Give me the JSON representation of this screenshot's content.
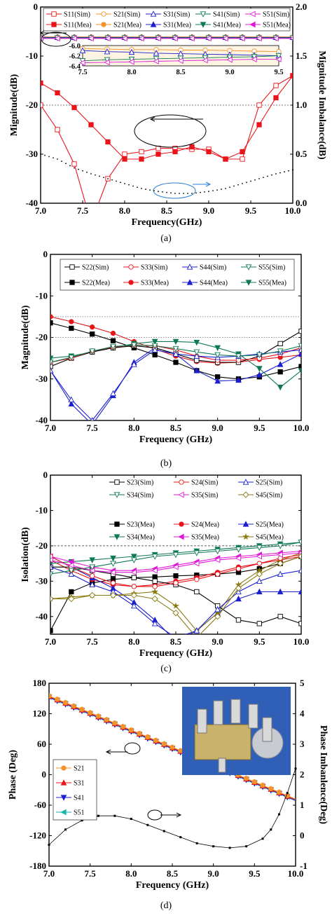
{
  "chart_data": [
    {
      "type": "line",
      "panel": "(a)",
      "xlabel": "Frequency(GHz)",
      "ylabel": "Mignitude(dB)",
      "y2label": "Mignitude Imbalance(dB)",
      "xlim": [
        7.0,
        10.0
      ],
      "ylim": [
        -40,
        0
      ],
      "y2lim": [
        0.0,
        2.0
      ],
      "xticks": [
        "7.0",
        "7.5",
        "8.0",
        "8.5",
        "9.0",
        "9.5",
        "10.0"
      ],
      "yticks": [
        "0",
        "-10",
        "-20",
        "-30",
        "-40"
      ],
      "y2ticks": [
        "0.0",
        "0.5",
        "1.0",
        "1.5",
        "2.0"
      ],
      "legend_position": "top",
      "legend": [
        "S11(Sim)",
        "S21(Sim)",
        "S31(Sim)",
        "S41(Sim)",
        "S51(Sim)",
        "S11(Mea)",
        "S21(Mea)",
        "S31(Mea)",
        "S41(Mea)",
        "S51(Mea)"
      ],
      "colors": {
        "S11": "#e8151b",
        "S21": "#f7922a",
        "S31": "#1b1fd0",
        "S41": "#0f7a52",
        "S51": "#e018d8",
        "imbalance": "#000000"
      },
      "x": [
        7.0,
        7.2,
        7.4,
        7.6,
        7.8,
        8.0,
        8.2,
        8.4,
        8.6,
        8.8,
        9.0,
        9.2,
        9.4,
        9.6,
        9.8,
        10.0
      ],
      "series": [
        {
          "name": "S11(Sim)",
          "axis": "y",
          "values": [
            -20,
            -25,
            -32,
            -44,
            -35,
            -30,
            -29.5,
            -28.8,
            -28.8,
            -29,
            -29,
            -31,
            -31,
            -20,
            -16,
            -14
          ]
        },
        {
          "name": "S11(Mea)",
          "axis": "y",
          "values": [
            -15.5,
            -17.5,
            -20.5,
            -24,
            -27.5,
            -31,
            -31,
            -30,
            -29.5,
            -28.5,
            -29.5,
            -31,
            -29.5,
            -24,
            -18.5,
            -14
          ]
        },
        {
          "name": "S21(Sim)",
          "axis": "y",
          "values": [
            -6.1,
            -6.1,
            -6.1,
            -6.1,
            -6.1,
            -6.1,
            -6.1,
            -6.1,
            -6.1,
            -6.1,
            -6.1,
            -6.1,
            -6.1,
            -6.1,
            -6.1,
            -6.1
          ]
        },
        {
          "name": "S31(Sim)",
          "axis": "y",
          "values": [
            -6.2,
            -6.2,
            -6.2,
            -6.2,
            -6.2,
            -6.2,
            -6.2,
            -6.2,
            -6.2,
            -6.2,
            -6.2,
            -6.2,
            -6.2,
            -6.2,
            -6.2,
            -6.2
          ]
        },
        {
          "name": "S41(Sim)",
          "axis": "y",
          "values": [
            -6.3,
            -6.3,
            -6.3,
            -6.3,
            -6.3,
            -6.3,
            -6.3,
            -6.3,
            -6.3,
            -6.3,
            -6.3,
            -6.3,
            -6.3,
            -6.3,
            -6.3,
            -6.3
          ]
        },
        {
          "name": "S51(Sim)",
          "axis": "y",
          "values": [
            -6.4,
            -6.4,
            -6.4,
            -6.4,
            -6.4,
            -6.4,
            -6.4,
            -6.4,
            -6.4,
            -6.4,
            -6.4,
            -6.4,
            -6.4,
            -6.4,
            -6.4,
            -6.4
          ]
        },
        {
          "name": "Imbalance",
          "axis": "y2",
          "style": "dots",
          "values": [
            0.5,
            0.45,
            0.36,
            0.3,
            0.25,
            0.2,
            0.15,
            0.12,
            0.1,
            0.1,
            0.12,
            0.15,
            0.2,
            0.25,
            0.3,
            0.34
          ]
        }
      ],
      "inset": {
        "xlim": [
          7.5,
          9.5
        ],
        "ylim": [
          -6.4,
          -6.0
        ],
        "xticks": [
          "7.5",
          "8.0",
          "8.5",
          "9.0",
          "9.5"
        ],
        "yticks": [
          "-6.0",
          "-6.2",
          "-6.4"
        ],
        "x": [
          7.5,
          7.75,
          8.0,
          8.25,
          8.5,
          8.75,
          9.0,
          9.25,
          9.5
        ],
        "series": [
          {
            "name": "S21",
            "values": [
              -6.06,
              -6.07,
              -6.08,
              -6.08,
              -6.09,
              -6.09,
              -6.1,
              -6.11,
              -6.12
            ]
          },
          {
            "name": "S31",
            "values": [
              -6.1,
              -6.12,
              -6.13,
              -6.15,
              -6.16,
              -6.17,
              -6.18,
              -6.19,
              -6.2
            ]
          },
          {
            "name": "S41",
            "values": [
              -6.3,
              -6.28,
              -6.27,
              -6.26,
              -6.25,
              -6.24,
              -6.23,
              -6.22,
              -6.2
            ]
          },
          {
            "name": "S51",
            "values": [
              -6.34,
              -6.33,
              -6.32,
              -6.31,
              -6.3,
              -6.29,
              -6.28,
              -6.27,
              -6.27
            ]
          }
        ]
      }
    },
    {
      "type": "line",
      "panel": "(b)",
      "xlabel": "Frequency (GHz)",
      "ylabel": "Magnitude(dB)",
      "xlim": [
        7.0,
        10.0
      ],
      "ylim": [
        -40,
        0
      ],
      "xticks": [
        "7.0",
        "7.5",
        "8.0",
        "8.5",
        "9.0",
        "9.5",
        "10.0"
      ],
      "yticks": [
        "0",
        "-10",
        "-20",
        "-30",
        "-40"
      ],
      "legend_position": "top",
      "legend": [
        "S22(Sim)",
        "S33(Sim)",
        "S44(Sim)",
        "S55(Sim)",
        "S22(Mea)",
        "S33(Mea)",
        "S44(Mea)",
        "S55(Mea)"
      ],
      "colors": {
        "S22": "#000000",
        "S33": "#e8151b",
        "S44": "#1b1fd0",
        "S55": "#0f7a52"
      },
      "x": [
        7.0,
        7.25,
        7.5,
        7.75,
        8.0,
        8.25,
        8.5,
        8.75,
        9.0,
        9.25,
        9.5,
        9.75,
        10.0
      ],
      "series": [
        {
          "name": "S22(Mea)",
          "values": [
            -16.5,
            -17.8,
            -19.2,
            -20.8,
            -22.5,
            -24.2,
            -26,
            -28,
            -29.5,
            -30,
            -29.5,
            -28.3,
            -27
          ]
        },
        {
          "name": "S33(Mea)",
          "values": [
            -15,
            -16.2,
            -17.5,
            -19,
            -21,
            -22.8,
            -24.5,
            -25.8,
            -26.2,
            -26,
            -25.3,
            -24.8,
            -24.2
          ]
        },
        {
          "name": "S44(Mea)",
          "values": [
            -28,
            -36,
            -41,
            -34,
            -26,
            -22.5,
            -24,
            -28,
            -30.5,
            -30.3,
            -29,
            -26.5,
            -24
          ]
        },
        {
          "name": "S55(Mea)",
          "values": [
            -25,
            -24.5,
            -23.5,
            -22.5,
            -21.5,
            -21,
            -21,
            -21.2,
            -22.5,
            -24,
            -27.5,
            -32,
            -28
          ]
        },
        {
          "name": "S22(Sim)",
          "values": [
            -27,
            -25,
            -23.5,
            -22.5,
            -22,
            -22.5,
            -24,
            -25.5,
            -26,
            -26,
            -24.5,
            -21.5,
            -18.5
          ]
        },
        {
          "name": "S33(Sim)",
          "values": [
            -26,
            -25,
            -23.3,
            -22.3,
            -21.8,
            -22,
            -23,
            -24.5,
            -25.5,
            -25.5,
            -25,
            -24,
            -22.5
          ]
        },
        {
          "name": "S44(Sim)",
          "values": [
            -28,
            -35,
            -40,
            -33.5,
            -26.5,
            -23,
            -24,
            -24.5,
            -24.8,
            -24.5,
            -24,
            -23.5,
            -23
          ]
        },
        {
          "name": "S55(Sim)",
          "values": [
            -26,
            -24.8,
            -23.3,
            -22.2,
            -21.8,
            -22,
            -22.7,
            -23.5,
            -24.2,
            -24.5,
            -24.2,
            -23.3,
            -22
          ]
        }
      ],
      "reference_lines": [
        -15,
        -20
      ]
    },
    {
      "type": "line",
      "panel": "(c)",
      "xlabel": "Frequency (GHz)",
      "ylabel": "Isolation(dB)",
      "xlim": [
        7.0,
        10.0
      ],
      "ylim": [
        -45,
        0
      ],
      "xticks": [
        "7.0",
        "7.5",
        "8.0",
        "8.5",
        "9.0",
        "9.5",
        "10.0"
      ],
      "yticks": [
        "0",
        "-10",
        "-20",
        "-30",
        "-40"
      ],
      "legend_position": "right",
      "legend": [
        "S23(Sim)",
        "S24(Sim)",
        "S25(Sim)",
        "S34(Sim)",
        "S35(Sim)",
        "S45(Sim)",
        "S23(Mea)",
        "S24(Mea)",
        "S25(Mea)",
        "S34(Mea)",
        "S35(Mea)",
        "S45(Mea)"
      ],
      "colors": {
        "S23": "#000000",
        "S24": "#e8151b",
        "S25": "#1b1fd0",
        "S34": "#0f7a52",
        "S35": "#e018d8",
        "S45": "#8a7a10"
      },
      "x": [
        7.0,
        7.25,
        7.5,
        7.75,
        8.0,
        8.25,
        8.5,
        8.75,
        9.0,
        9.25,
        9.5,
        9.75,
        10.0
      ],
      "series": [
        {
          "name": "S23(Mea)",
          "values": [
            -44,
            -33,
            -30.5,
            -29.5,
            -29,
            -28.8,
            -28.5,
            -28.3,
            -28,
            -27.5,
            -26.5,
            -25,
            -23
          ]
        },
        {
          "name": "S24(Mea)",
          "values": [
            -24,
            -27,
            -29.5,
            -31,
            -31.5,
            -31,
            -30,
            -29,
            -27.5,
            -26,
            -25,
            -24,
            -23
          ]
        },
        {
          "name": "S25(Mea)",
          "values": [
            -23,
            -26,
            -29,
            -32,
            -36,
            -41,
            -47,
            -44,
            -39,
            -35,
            -33,
            -33,
            -33
          ]
        },
        {
          "name": "S34(Mea)",
          "values": [
            -25,
            -24.5,
            -24,
            -23.5,
            -23,
            -22.5,
            -22,
            -21.5,
            -21,
            -20.5,
            -20,
            -19.5,
            -19
          ]
        },
        {
          "name": "S35(Mea)",
          "values": [
            -23,
            -24.5,
            -26,
            -27,
            -27,
            -26.5,
            -25.5,
            -24.5,
            -23.5,
            -23,
            -22.5,
            -22,
            -21.5
          ]
        },
        {
          "name": "S45(Mea)",
          "values": [
            -35,
            -34.5,
            -34,
            -34,
            -33.5,
            -33,
            -37,
            -44,
            -39,
            -31,
            -27,
            -24,
            -22
          ]
        },
        {
          "name": "S23(Sim)",
          "values": [
            -26,
            -26,
            -27,
            -28,
            -29,
            -30,
            -31,
            -33,
            -37,
            -41,
            -42,
            -40,
            -42
          ]
        },
        {
          "name": "S24(Sim)",
          "values": [
            -23,
            -26,
            -28.5,
            -30.5,
            -31.5,
            -31.5,
            -30.5,
            -29.5,
            -28,
            -26.5,
            -25,
            -23.5,
            -22.5
          ]
        },
        {
          "name": "S25(Sim)",
          "values": [
            -26,
            -28,
            -31,
            -33,
            -37,
            -42,
            -46,
            -44,
            -38,
            -33,
            -30,
            -28,
            -27
          ]
        },
        {
          "name": "S34(Sim)",
          "values": [
            -28,
            -27,
            -26,
            -25,
            -24,
            -23,
            -22.5,
            -22,
            -21.5,
            -21,
            -20.5,
            -20,
            -19
          ]
        },
        {
          "name": "S35(Sim)",
          "values": [
            -24,
            -25.5,
            -27,
            -27.5,
            -27.5,
            -27,
            -26,
            -25,
            -24,
            -23.5,
            -23,
            -22.5,
            -22
          ]
        },
        {
          "name": "S45(Sim)",
          "values": [
            -35,
            -35,
            -34,
            -34,
            -34,
            -35,
            -39,
            -46,
            -40,
            -32,
            -28,
            -25,
            -23
          ]
        }
      ],
      "reference_lines": [
        -20
      ]
    },
    {
      "type": "line",
      "panel": "(d)",
      "xlabel": "Frequency (GHz)",
      "ylabel": "Phase (Deg)",
      "y2label": "Phase Imbanlence(Deg)",
      "xlim": [
        7.0,
        10.0
      ],
      "ylim": [
        -180,
        180
      ],
      "y2lim": [
        -1,
        5
      ],
      "xticks": [
        "7.0",
        "7.5",
        "8.0",
        "8.5",
        "9.0",
        "9.5",
        "10.0"
      ],
      "yticks": [
        "180",
        "120",
        "60",
        "0",
        "-60",
        "-120",
        "-180"
      ],
      "y2ticks": [
        "5",
        "4",
        "3",
        "2",
        "1",
        "0",
        "-1"
      ],
      "legend_position": "left",
      "legend": [
        "S21",
        "S31",
        "S41",
        "S51"
      ],
      "colors": {
        "S21": "#f7922a",
        "S31": "#e8151b",
        "S41": "#1b1fd0",
        "S51": "#16b6a8",
        "imbalance": "#000000"
      },
      "x": [
        7.0,
        7.5,
        8.0,
        8.5,
        9.0,
        9.5,
        10.0
      ],
      "series": [
        {
          "name": "S21",
          "axis": "y",
          "values": [
            155,
            122,
            88,
            54,
            20,
            -14,
            -48
          ]
        },
        {
          "name": "S31",
          "axis": "y",
          "values": [
            154,
            121,
            87,
            53,
            19,
            -15,
            -49
          ]
        },
        {
          "name": "S41",
          "axis": "y",
          "values": [
            152,
            119,
            85,
            51,
            17,
            -17,
            -51
          ]
        },
        {
          "name": "S51",
          "axis": "y",
          "values": [
            153,
            120,
            86,
            52,
            18,
            -16,
            -50
          ]
        }
      ],
      "imbalance": {
        "axis": "y2",
        "x": [
          7.0,
          7.2,
          7.4,
          7.6,
          7.8,
          8.0,
          8.2,
          8.4,
          8.6,
          8.8,
          9.0,
          9.2,
          9.4,
          9.6,
          9.7,
          9.8,
          9.9,
          10.0
        ],
        "values": [
          -0.3,
          0.2,
          0.5,
          0.65,
          0.65,
          0.55,
          0.35,
          0.15,
          -0.05,
          -0.25,
          -0.35,
          -0.4,
          -0.35,
          -0.1,
          0.2,
          0.7,
          1.4,
          2.2
        ]
      }
    }
  ],
  "panels": {
    "a": "(a)",
    "b": "(b)",
    "c": "(c)",
    "d": "(d)"
  }
}
